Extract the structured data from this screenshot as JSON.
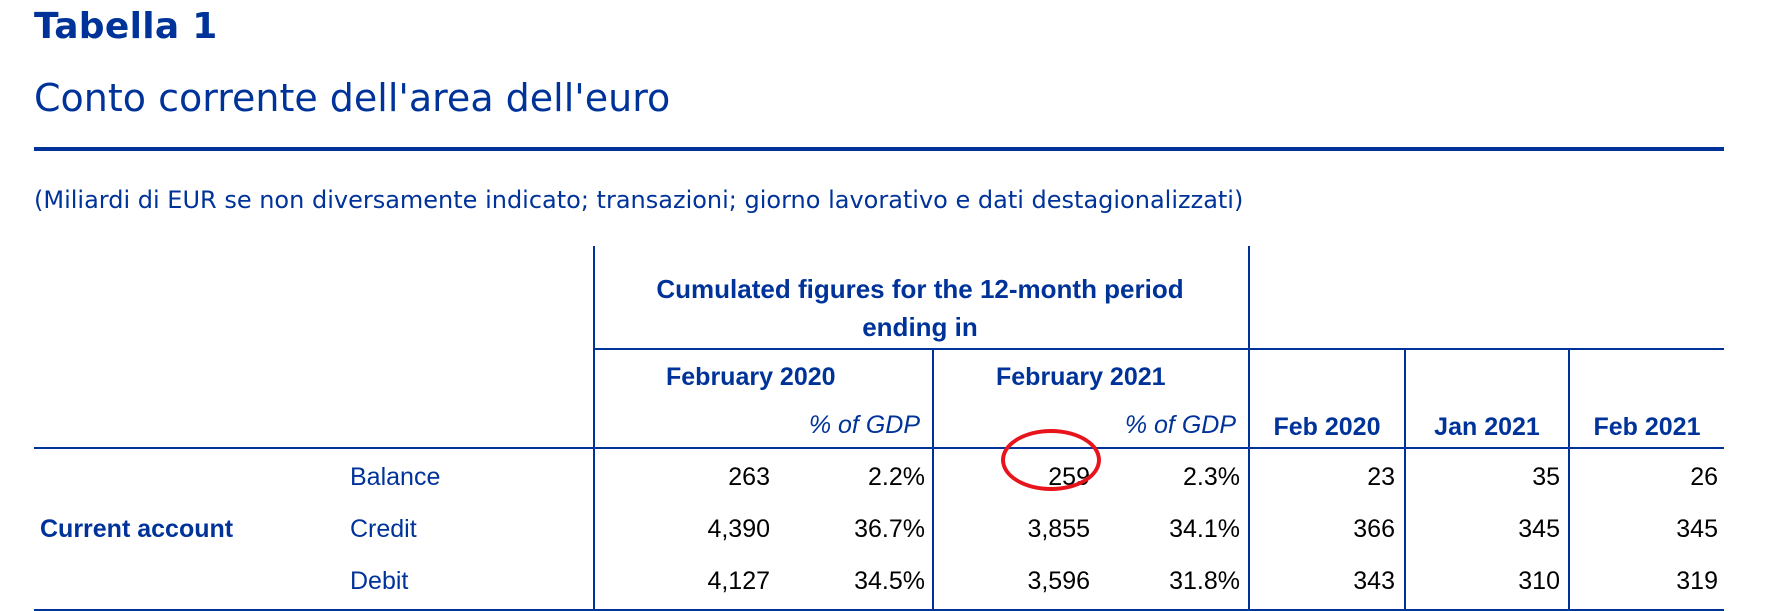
{
  "header": {
    "title": "Tabella 1",
    "subtitle": "Conto corrente dell'area dell'euro",
    "note": "(Miliardi di EUR se non diversamente indicato; transazioni; giorno lavorativo e dati destagionalizzati)"
  },
  "table": {
    "group_header": "Cumulated figures for the 12-month period ending in",
    "periods": [
      "February 2020",
      "February 2021"
    ],
    "pct_label": "% of GDP",
    "monthly": [
      "Feb 2020",
      "Jan 2021",
      "Feb 2021"
    ],
    "section": "Current account",
    "rows": [
      {
        "label": "Balance",
        "cum2020": "263",
        "pct2020": "2.2%",
        "cum2021": "259",
        "pct2021": "2.3%",
        "feb2020": "23",
        "jan2021": "35",
        "feb2021": "26"
      },
      {
        "label": "Credit",
        "cum2020": "4,390",
        "pct2020": "36.7%",
        "cum2021": "3,855",
        "pct2021": "34.1%",
        "feb2020": "366",
        "jan2021": "345",
        "feb2021": "345"
      },
      {
        "label": "Debit",
        "cum2020": "4,127",
        "pct2020": "34.5%",
        "cum2021": "3,596",
        "pct2021": "31.8%",
        "feb2020": "343",
        "jan2021": "310",
        "feb2021": "319"
      }
    ]
  },
  "highlight": {
    "color": "#e8141c",
    "target": "Balance cum2021"
  },
  "colors": {
    "accent": "#003399"
  }
}
